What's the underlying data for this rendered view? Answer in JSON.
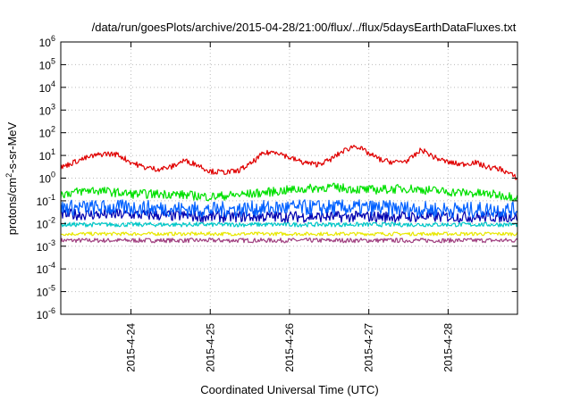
{
  "chart_data": {
    "type": "line",
    "title": "/data/run/goesPlots/archive/2015-04-28/21:00/flux/../flux/5daysEarthDataFluxes.txt",
    "xlabel": "Coordinated Universal Time (UTC)",
    "ylabel": "protons/cm²-s-sr-MeV",
    "ylabel_parts": {
      "base": "protons/cm",
      "sup": "2",
      "rest": "-s-sr-MeV"
    },
    "yscale": "log",
    "ylim": [
      1e-06,
      1000000.0
    ],
    "y_ticks": [
      {
        "value": 1e-06,
        "base": "10",
        "exp": "-6"
      },
      {
        "value": 1e-05,
        "base": "10",
        "exp": "-5"
      },
      {
        "value": 0.0001,
        "base": "10",
        "exp": "-4"
      },
      {
        "value": 0.001,
        "base": "10",
        "exp": "-3"
      },
      {
        "value": 0.01,
        "base": "10",
        "exp": "-2"
      },
      {
        "value": 0.1,
        "base": "10",
        "exp": "-1"
      },
      {
        "value": 1,
        "base": "10",
        "exp": "0"
      },
      {
        "value": 10,
        "base": "10",
        "exp": "1"
      },
      {
        "value": 100,
        "base": "10",
        "exp": "2"
      },
      {
        "value": 1000,
        "base": "10",
        "exp": "3"
      },
      {
        "value": 10000,
        "base": "10",
        "exp": "4"
      },
      {
        "value": 100000,
        "base": "10",
        "exp": "5"
      },
      {
        "value": 1000000,
        "base": "10",
        "exp": "6"
      }
    ],
    "xlim": [
      "2015-04-23 02:45",
      "2015-04-28 21:00"
    ],
    "x_ticks": [
      "2015-4-24",
      "2015-4-25",
      "2015-4-26",
      "2015-4-27",
      "2015-4-28"
    ],
    "x_tick_dates": [
      "2015-04-24",
      "2015-04-25",
      "2015-04-26",
      "2015-04-27",
      "2015-04-28"
    ],
    "grid": true,
    "legend": "none",
    "series": [
      {
        "color": "#e00000",
        "x": [
          "2015-04-23 03:00",
          "2015-04-23 08:00",
          "2015-04-23 12:00",
          "2015-04-23 16:00",
          "2015-04-23 20:00",
          "2015-04-24 00:00",
          "2015-04-24 04:00",
          "2015-04-24 08:00",
          "2015-04-24 12:00",
          "2015-04-24 16:00",
          "2015-04-24 20:00",
          "2015-04-25 00:00",
          "2015-04-25 04:00",
          "2015-04-25 08:00",
          "2015-04-25 12:00",
          "2015-04-25 16:00",
          "2015-04-25 20:00",
          "2015-04-26 00:00",
          "2015-04-26 04:00",
          "2015-04-26 08:00",
          "2015-04-26 12:00",
          "2015-04-26 16:00",
          "2015-04-26 20:00",
          "2015-04-27 00:00",
          "2015-04-27 04:00",
          "2015-04-27 08:00",
          "2015-04-27 12:00",
          "2015-04-27 16:00",
          "2015-04-27 20:00",
          "2015-04-28 00:00",
          "2015-04-28 04:00",
          "2015-04-28 08:00",
          "2015-04-28 12:00",
          "2015-04-28 16:00",
          "2015-04-28 21:00"
        ],
        "values": [
          3,
          6,
          9,
          12,
          11,
          5,
          3,
          2.5,
          3,
          6,
          4,
          2,
          1.8,
          2,
          4,
          12,
          15,
          8,
          5,
          4,
          6,
          15,
          28,
          12,
          6,
          5,
          6,
          18,
          8,
          5,
          4,
          5,
          3,
          2.5,
          1
        ]
      },
      {
        "color": "#00e000",
        "x": [
          "2015-04-23 03:00",
          "2015-04-23 12:00",
          "2015-04-24 00:00",
          "2015-04-24 12:00",
          "2015-04-25 00:00",
          "2015-04-25 12:00",
          "2015-04-26 00:00",
          "2015-04-26 12:00",
          "2015-04-27 00:00",
          "2015-04-27 12:00",
          "2015-04-28 00:00",
          "2015-04-28 12:00",
          "2015-04-28 21:00"
        ],
        "values": [
          0.2,
          0.3,
          0.2,
          0.2,
          0.15,
          0.2,
          0.3,
          0.4,
          0.3,
          0.35,
          0.25,
          0.2,
          0.15
        ]
      },
      {
        "color": "#0060ff",
        "x": [
          "2015-04-23 03:00",
          "2015-04-24 00:00",
          "2015-04-25 00:00",
          "2015-04-26 00:00",
          "2015-04-27 00:00",
          "2015-04-28 00:00",
          "2015-04-28 21:00"
        ],
        "values": [
          0.05,
          0.05,
          0.04,
          0.05,
          0.05,
          0.04,
          0.04
        ]
      },
      {
        "color": "#0000b0",
        "x": [
          "2015-04-23 03:00",
          "2015-04-24 00:00",
          "2015-04-25 00:00",
          "2015-04-26 00:00",
          "2015-04-27 00:00",
          "2015-04-28 00:00",
          "2015-04-28 21:00"
        ],
        "values": [
          0.025,
          0.025,
          0.02,
          0.02,
          0.02,
          0.02,
          0.02
        ]
      },
      {
        "color": "#00c8c8",
        "x": [
          "2015-04-23 03:00",
          "2015-04-28 21:00"
        ],
        "values": [
          0.009,
          0.009
        ]
      },
      {
        "color": "#e8e800",
        "x": [
          "2015-04-23 03:00",
          "2015-04-28 21:00"
        ],
        "values": [
          0.0035,
          0.0035
        ]
      },
      {
        "color": "#a04080",
        "x": [
          "2015-04-23 03:00",
          "2015-04-28 21:00"
        ],
        "values": [
          0.0018,
          0.0018
        ]
      }
    ]
  }
}
